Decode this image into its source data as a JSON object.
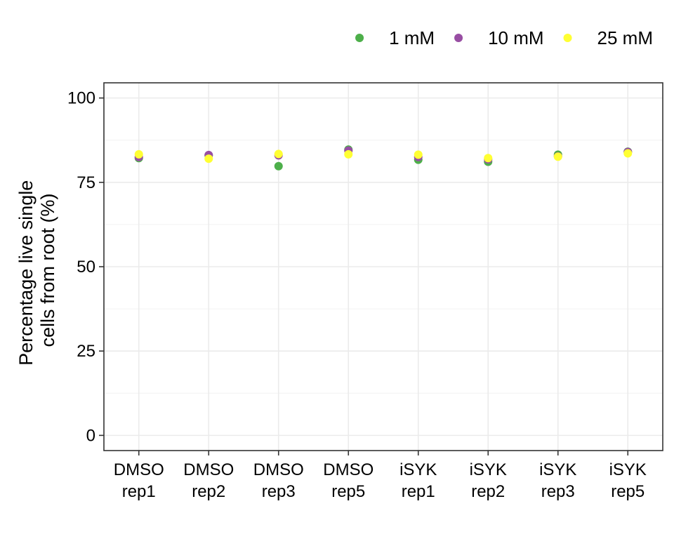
{
  "chart_data": {
    "type": "scatter",
    "title": "",
    "xlabel": "",
    "ylabel_lines": [
      "Percentage live single",
      "cells from root (%)"
    ],
    "categories": [
      [
        "DMSO",
        "rep1"
      ],
      [
        "DMSO",
        "rep2"
      ],
      [
        "DMSO",
        "rep3"
      ],
      [
        "DMSO",
        "rep5"
      ],
      [
        "iSYK",
        "rep1"
      ],
      [
        "iSYK",
        "rep2"
      ],
      [
        "iSYK",
        "rep3"
      ],
      [
        "iSYK",
        "rep5"
      ]
    ],
    "ylim": [
      -4.5,
      104.5
    ],
    "yticks": [
      0,
      25,
      50,
      75,
      100
    ],
    "grid": true,
    "legend_position": "top-right",
    "series": [
      {
        "name": "1 mM",
        "color": "#4DAF4A",
        "values": [
          82.2,
          83.0,
          79.8,
          84.7,
          81.7,
          81.1,
          83.2,
          84.1
        ]
      },
      {
        "name": "10 mM",
        "color": "#984EA3",
        "values": [
          82.5,
          83.1,
          83.0,
          84.4,
          82.5,
          81.8,
          82.7,
          84.0
        ]
      },
      {
        "name": "25 mM",
        "color": "#FFFF33",
        "values": [
          83.3,
          82.0,
          83.4,
          83.3,
          83.2,
          82.2,
          82.6,
          83.6
        ]
      }
    ]
  }
}
